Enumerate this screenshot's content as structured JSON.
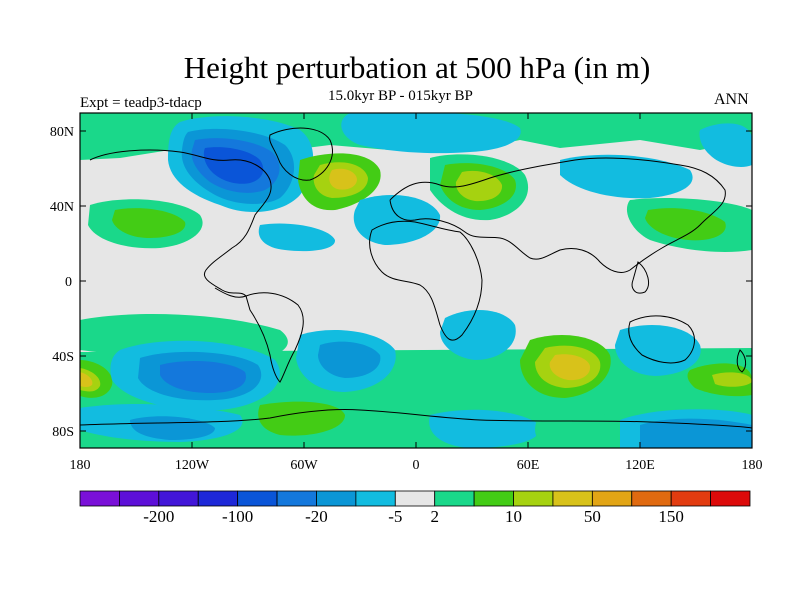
{
  "figure": {
    "title": "Height perturbation at 500 hPa (in m)",
    "subtitle": "15.0kyr BP - 015kyr BP",
    "left_label": "Expt = teadp3-tdacp",
    "right_label": "ANN"
  },
  "axes": {
    "lat_ticks": [
      "80N",
      "40N",
      "0",
      "40S",
      "80S"
    ],
    "lon_ticks": [
      "180",
      "120W",
      "60W",
      "0",
      "60E",
      "120E",
      "180"
    ]
  },
  "colorbar": {
    "colors": [
      "#7a10d8",
      "#5d0fd8",
      "#4216d8",
      "#1e28d8",
      "#0a55d8",
      "#1478dc",
      "#0b96d6",
      "#12bce0",
      "#e6e6e6",
      "#1ad88a",
      "#43cc15",
      "#a6d210",
      "#d8c21a",
      "#e2a515",
      "#e06a10",
      "#e23c10",
      "#dc0a0a"
    ],
    "labels": [
      "-200",
      "-100",
      "-20",
      "-5",
      "2",
      "10",
      "50",
      "150"
    ]
  }
}
